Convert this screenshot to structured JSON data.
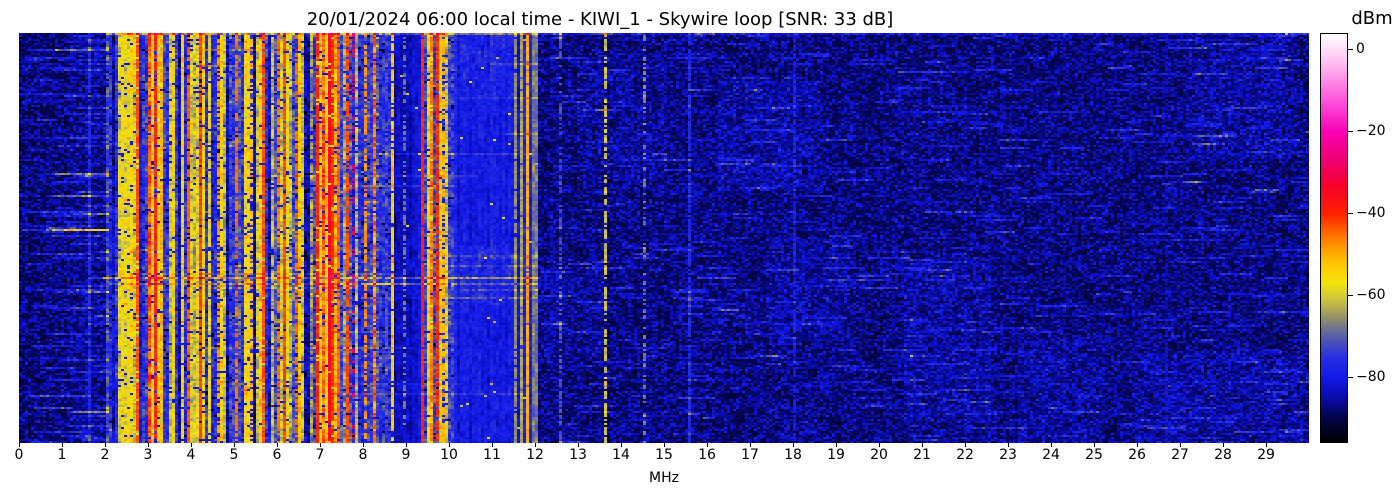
{
  "title": "20/01/2024 06:00 local time - KIWI_1 - Skywire loop [SNR: 33 dB]",
  "title_parts": {
    "date": "20/01/2024",
    "time": "06:00 local time",
    "station": "KIWI_1",
    "antenna": "Skywire loop",
    "snr": "SNR: 33 dB"
  },
  "xlabel": "MHz",
  "chart_data": {
    "type": "heatmap",
    "subtype": "rf-waterfall-spectrogram",
    "title": "20/01/2024 06:00 local time - KIWI_1 - Skywire loop [SNR: 33 dB]",
    "xlabel": "MHz",
    "x_axis": {
      "min": 0,
      "max": 30,
      "tick_values": [
        0,
        1,
        2,
        3,
        4,
        5,
        6,
        7,
        8,
        9,
        10,
        11,
        12,
        13,
        14,
        15,
        16,
        17,
        18,
        19,
        20,
        21,
        22,
        23,
        24,
        25,
        26,
        27,
        28,
        29
      ],
      "tick_labels": [
        "0",
        "1",
        "2",
        "3",
        "4",
        "5",
        "6",
        "7",
        "8",
        "9",
        "10",
        "11",
        "12",
        "13",
        "14",
        "15",
        "16",
        "17",
        "18",
        "19",
        "20",
        "21",
        "22",
        "23",
        "24",
        "25",
        "26",
        "27",
        "28",
        "29"
      ]
    },
    "y_axis": {
      "tick_labels": [],
      "meaning": "time (no labels shown)"
    },
    "colorbar": {
      "label": "dBm",
      "vmax": 4,
      "vmin": -96,
      "tick_values": [
        0,
        -20,
        -40,
        -60,
        -80
      ],
      "tick_labels": [
        "0",
        "−20",
        "−40",
        "−60",
        "−80"
      ]
    },
    "colormap_stops": [
      [
        -96,
        "#000000"
      ],
      [
        -90,
        "#030448"
      ],
      [
        -85,
        "#0a0cae"
      ],
      [
        -80,
        "#121ae8"
      ],
      [
        -75,
        "#2a30df"
      ],
      [
        -70,
        "#585fa8"
      ],
      [
        -66,
        "#8e8a70"
      ],
      [
        -61,
        "#cfc53e"
      ],
      [
        -57,
        "#f2e40b"
      ],
      [
        -52,
        "#ffc400"
      ],
      [
        -46,
        "#ff7a00"
      ],
      [
        -40,
        "#ff2000"
      ],
      [
        -33,
        "#f6002e"
      ],
      [
        -27,
        "#ef0071"
      ],
      [
        -20,
        "#f700b4"
      ],
      [
        -12,
        "#ff57dd"
      ],
      [
        -3,
        "#ffc0f0"
      ],
      [
        4,
        "#ffffff"
      ]
    ],
    "noise_floor_dbm": -92,
    "bands": [
      {
        "f0": 0.0,
        "f1": 2.05,
        "type": "quiet",
        "base": -92
      },
      {
        "f0": 2.05,
        "f1": 8.75,
        "type": "active",
        "base": -78
      },
      {
        "f0": 8.75,
        "f1": 9.33,
        "type": "semi",
        "base": -84
      },
      {
        "f0": 9.33,
        "f1": 10.1,
        "type": "active",
        "base": -76
      },
      {
        "f0": 10.1,
        "f1": 11.45,
        "type": "blue",
        "base": -80
      },
      {
        "f0": 11.45,
        "f1": 12.08,
        "type": "semi",
        "base": -80
      },
      {
        "f0": 12.08,
        "f1": 30.0,
        "type": "quiet",
        "base": -91.5
      }
    ],
    "activity_clusters": [
      [
        2.05,
        2.3,
        0.55
      ],
      [
        2.3,
        2.8,
        0.8
      ],
      [
        3.0,
        3.65,
        0.6
      ],
      [
        3.8,
        4.1,
        0.5
      ],
      [
        4.3,
        4.8,
        0.7
      ],
      [
        5.0,
        5.55,
        0.4
      ],
      [
        5.85,
        6.6,
        0.65
      ],
      [
        6.88,
        7.7,
        0.75
      ],
      [
        7.95,
        8.5,
        0.55
      ],
      [
        9.33,
        10.05,
        0.72
      ]
    ],
    "default_activity": 0.25,
    "signal_lines": [
      {
        "f": 1.67,
        "db": -79,
        "p": 0.9
      },
      {
        "f": 2.78,
        "db": -43,
        "p": 0.85
      },
      {
        "f": 3.2,
        "db": -40,
        "p": 0.9
      },
      {
        "f": 3.33,
        "db": -50,
        "p": 0.7
      },
      {
        "f": 3.91,
        "db": -44,
        "p": 0.8
      },
      {
        "f": 4.2,
        "db": -42,
        "p": 0.85
      },
      {
        "f": 4.62,
        "db": -48,
        "p": 0.65
      },
      {
        "f": 5.06,
        "db": -45,
        "p": 0.7
      },
      {
        "f": 5.42,
        "db": -52,
        "p": 0.6
      },
      {
        "f": 5.66,
        "db": -43,
        "p": 0.85
      },
      {
        "f": 6.0,
        "db": -46,
        "p": 0.7
      },
      {
        "f": 6.17,
        "db": -43,
        "p": 0.8
      },
      {
        "f": 6.45,
        "db": -45,
        "p": 0.6
      },
      {
        "f": 6.93,
        "db": -40,
        "p": 0.9
      },
      {
        "f": 7.2,
        "db": -35,
        "p": 0.95
      },
      {
        "f": 7.31,
        "db": -41,
        "p": 0.9
      },
      {
        "f": 7.44,
        "db": -44,
        "p": 0.8
      },
      {
        "f": 7.63,
        "db": -43,
        "p": 0.8
      },
      {
        "f": 7.77,
        "db": -31,
        "p": 0.22
      },
      {
        "f": 8.05,
        "db": -48,
        "p": 0.65
      },
      {
        "f": 8.28,
        "db": -42,
        "p": 0.3
      },
      {
        "f": 8.95,
        "db": -68,
        "p": 0.5
      },
      {
        "f": 9.41,
        "db": -40,
        "p": 0.92
      },
      {
        "f": 9.57,
        "db": -46,
        "p": 0.75
      },
      {
        "f": 9.73,
        "db": -41,
        "p": 0.9
      },
      {
        "f": 9.9,
        "db": -51,
        "p": 0.7
      },
      {
        "f": 11.56,
        "db": -66,
        "p": 0.95
      },
      {
        "f": 11.66,
        "db": -64,
        "p": 0.9
      },
      {
        "f": 11.86,
        "db": -50,
        "p": 0.97
      },
      {
        "f": 12.62,
        "db": -72,
        "p": 0.5
      },
      {
        "f": 13.62,
        "db": -62,
        "p": 0.6
      },
      {
        "f": 14.52,
        "db": -68,
        "p": 0.45
      },
      {
        "f": 15.56,
        "db": -77,
        "p": 0.8
      },
      {
        "f": 18.02,
        "db": -80,
        "p": 0.7
      },
      {
        "f": 26.7,
        "db": -84,
        "p": 0.6
      }
    ],
    "streaks": [
      {
        "rowFrac": 0.0,
        "f0": 2.05,
        "f1": 12.6,
        "boost": 11
      },
      {
        "rowFrac": 0.0,
        "f0": 12.6,
        "f1": 30.0,
        "boost": 6
      },
      {
        "rowFrac": 0.588,
        "f0": 2.2,
        "f1": 8.75,
        "boost": 6
      },
      {
        "rowFrac": 0.6,
        "f0": 2.0,
        "f1": 12.08,
        "boost": 13
      },
      {
        "rowFrac": 0.612,
        "f0": 2.0,
        "f1": 12.08,
        "boost": 8
      },
      {
        "rowFrac": 0.545,
        "f0": 9.3,
        "f1": 12.0,
        "boost": 5
      },
      {
        "rowFrac": 0.571,
        "f0": 10.0,
        "f1": 12.0,
        "boost": 5
      },
      {
        "rowFrac": 0.625,
        "f0": 10.0,
        "f1": 12.0,
        "boost": 4
      }
    ],
    "patches": [
      {
        "f0": 1.25,
        "f1": 2.05,
        "r0": 0.0,
        "r1": 1.0,
        "boost": 2.5
      },
      {
        "f0": 10.1,
        "f1": 11.45,
        "r0": 0.0,
        "r1": 0.15,
        "boost": 3
      },
      {
        "f0": 10.1,
        "f1": 11.5,
        "r0": 0.52,
        "r1": 0.66,
        "boost": 4
      },
      {
        "f0": 12.2,
        "f1": 13.6,
        "r0": 0.55,
        "r1": 0.8,
        "boost": 2.5
      },
      {
        "f0": 13.0,
        "f1": 15.0,
        "r0": 0.05,
        "r1": 0.35,
        "boost": 2.5
      },
      {
        "f0": 16.3,
        "f1": 18.6,
        "r0": 0.12,
        "r1": 0.38,
        "boost": 3.5
      },
      {
        "f0": 17.4,
        "f1": 19.3,
        "r0": 0.5,
        "r1": 0.75,
        "boost": 3
      },
      {
        "f0": 20.6,
        "f1": 22.6,
        "r0": 0.55,
        "r1": 0.95,
        "boost": 3.5
      },
      {
        "f0": 23.3,
        "f1": 25.2,
        "r0": 0.75,
        "r1": 1.0,
        "boost": 3
      },
      {
        "f0": 27.2,
        "f1": 29.6,
        "r0": 0.0,
        "r1": 0.3,
        "boost": 3.5
      },
      {
        "f0": 26.0,
        "f1": 29.8,
        "r0": 0.78,
        "r1": 1.0,
        "boost": 3.5
      }
    ],
    "quiet_dashes": [
      {
        "f0": 0.0,
        "f1": 2.05,
        "count": 120,
        "len": [
          0.25,
          1.6
        ],
        "boost": [
          4,
          10
        ]
      },
      {
        "f0": 12.08,
        "f1": 30.0,
        "count": 520,
        "len": [
          0.12,
          0.9
        ],
        "boost": [
          4,
          10
        ]
      }
    ],
    "active_random_streaks": {
      "count": 18,
      "f0": 2.05,
      "f1": 11.5,
      "len": [
        1,
        6
      ],
      "boost": [
        3,
        6
      ]
    },
    "seed": 20240120
  }
}
